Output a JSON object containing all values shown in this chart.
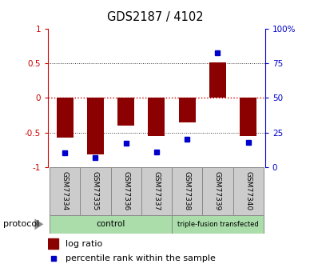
{
  "title": "GDS2187 / 4102",
  "samples": [
    "GSM77334",
    "GSM77335",
    "GSM77336",
    "GSM77337",
    "GSM77338",
    "GSM77339",
    "GSM77340"
  ],
  "log_ratio": [
    -0.57,
    -0.82,
    -0.4,
    -0.55,
    -0.35,
    0.52,
    -0.55
  ],
  "percentile": [
    0.1,
    0.07,
    0.17,
    0.11,
    0.2,
    0.83,
    0.18
  ],
  "bar_color": "#8b0000",
  "dot_color": "#0000cc",
  "ylim_left": [
    -1.0,
    1.0
  ],
  "ylim_right": [
    0.0,
    1.0
  ],
  "y_ticks_left": [
    -1.0,
    -0.5,
    0.0,
    0.5,
    1.0
  ],
  "y_tick_left_labels": [
    "-1",
    "-0.5",
    "0",
    "0.5",
    "1"
  ],
  "y_ticks_right": [
    0.0,
    0.25,
    0.5,
    0.75,
    1.0
  ],
  "y_ticks_right_labels": [
    "0",
    "25",
    "50",
    "75",
    "100%"
  ],
  "left_axis_color": "#cc0000",
  "right_axis_color": "#0000cc",
  "hline_zero_color": "#cc0000",
  "hline_grid_color": "#333333",
  "group1_label": "control",
  "group1_count": 4,
  "group2_label": "triple-fusion transfected",
  "group2_count": 3,
  "group_color": "#aaddaa",
  "sample_box_color": "#cccccc",
  "protocol_label": "protocol",
  "legend_ratio_label": "log ratio",
  "legend_pct_label": "percentile rank within the sample"
}
